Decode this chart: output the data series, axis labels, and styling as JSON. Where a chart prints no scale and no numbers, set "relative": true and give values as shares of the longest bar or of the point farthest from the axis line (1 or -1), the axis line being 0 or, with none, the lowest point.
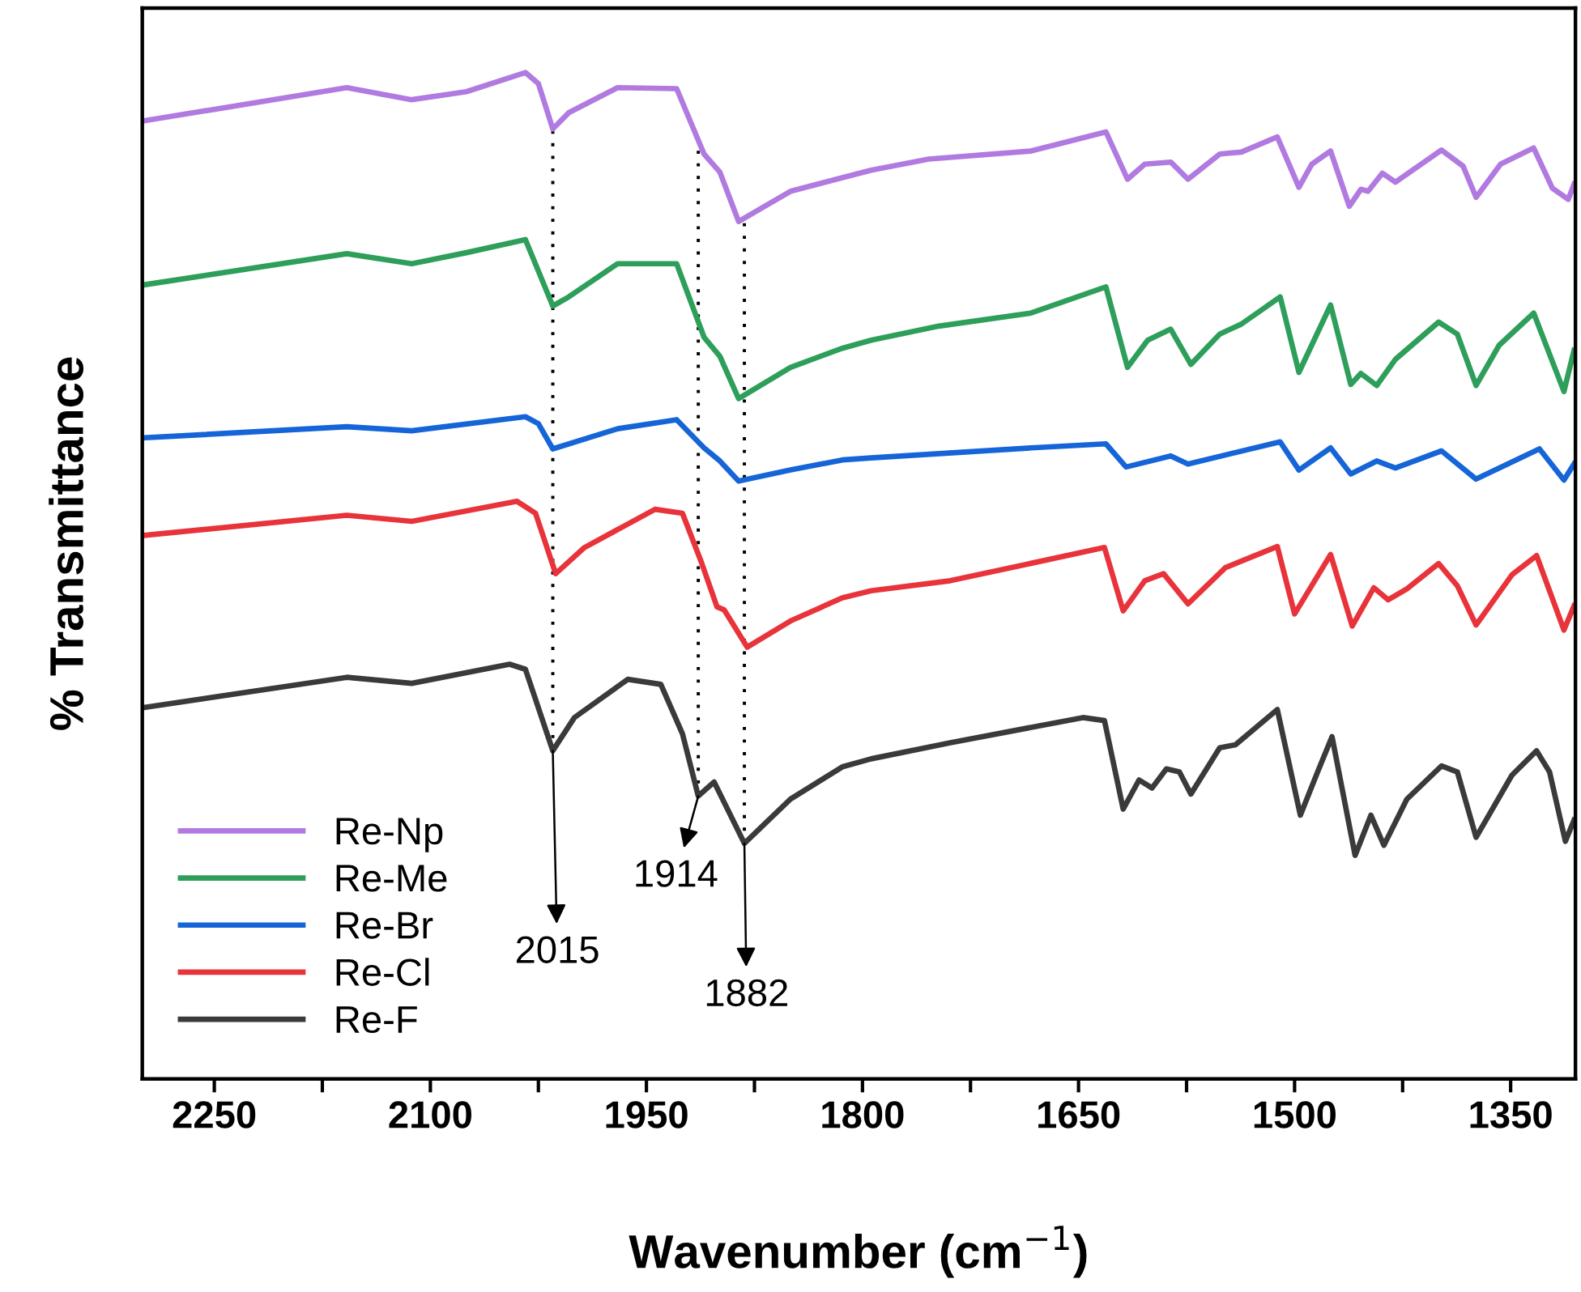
{
  "chart_data": {
    "type": "line",
    "relative": true,
    "xlabel": "Wavenumber (cm$^{−1}$)",
    "ylabel": "% Transmittance",
    "xlim": [
      2300,
      1305
    ],
    "xticks": [
      2250,
      {
        "value": 2175,
        "label": null
      },
      2100,
      {
        "value": 2025,
        "label": null
      },
      1950,
      {
        "value": 1875,
        "label": null
      },
      1800,
      {
        "value": 1725,
        "label": null
      },
      1650,
      {
        "value": 1575,
        "label": null
      },
      1500,
      {
        "value": 1425,
        "label": null
      },
      1350
    ],
    "tick_labels": "x",
    "grid": false,
    "legend": "bottom left",
    "marker": "none",
    "line_style": "solid",
    "series": [
      {
        "name": "Re-Np",
        "color": "#b07ae0",
        "x": [
          2299,
          2158,
          2113,
          2075,
          2034,
          2025,
          2015,
          2004,
          1970,
          1929,
          1910,
          1899,
          1886,
          1850,
          1794,
          1754,
          1683,
          1631,
          1616,
          1604,
          1586,
          1574,
          1552,
          1537,
          1512,
          1497,
          1488,
          1475,
          1462,
          1454,
          1449,
          1439,
          1430,
          1398,
          1383,
          1374,
          1357,
          1334,
          1321,
          1310,
          1306
        ],
        "values": [
          0.952,
          0.985,
          0.973,
          0.981,
          1.0,
          0.989,
          0.944,
          0.96,
          0.985,
          0.984,
          0.919,
          0.901,
          0.852,
          0.882,
          0.903,
          0.914,
          0.922,
          0.941,
          0.894,
          0.909,
          0.911,
          0.894,
          0.919,
          0.921,
          0.936,
          0.886,
          0.909,
          0.922,
          0.867,
          0.884,
          0.882,
          0.9,
          0.891,
          0.923,
          0.907,
          0.876,
          0.909,
          0.925,
          0.885,
          0.874,
          0.889
        ]
      },
      {
        "name": "Re-Me",
        "color": "#2e9e5b",
        "x": [
          2299,
          2158,
          2113,
          2075,
          2034,
          2015,
          2004,
          1970,
          1929,
          1910,
          1899,
          1886,
          1850,
          1814,
          1794,
          1747,
          1683,
          1631,
          1616,
          1602,
          1586,
          1572,
          1552,
          1537,
          1510,
          1497,
          1475,
          1461,
          1454,
          1443,
          1430,
          1400,
          1387,
          1374,
          1358,
          1334,
          1313,
          1306
        ],
        "values": [
          0.789,
          0.82,
          0.81,
          0.821,
          0.834,
          0.768,
          0.777,
          0.81,
          0.81,
          0.737,
          0.718,
          0.676,
          0.707,
          0.726,
          0.734,
          0.748,
          0.761,
          0.787,
          0.707,
          0.734,
          0.745,
          0.71,
          0.74,
          0.75,
          0.777,
          0.702,
          0.769,
          0.69,
          0.701,
          0.689,
          0.715,
          0.752,
          0.74,
          0.689,
          0.729,
          0.761,
          0.683,
          0.724
        ]
      },
      {
        "name": "Re-Br",
        "color": "#1565d8",
        "x": [
          2299,
          2158,
          2113,
          2034,
          2025,
          2015,
          1970,
          1929,
          1910,
          1899,
          1886,
          1850,
          1814,
          1794,
          1683,
          1631,
          1617,
          1586,
          1574,
          1510,
          1497,
          1475,
          1461,
          1443,
          1430,
          1398,
          1374,
          1330,
          1313,
          1306
        ],
        "values": [
          0.637,
          0.648,
          0.644,
          0.658,
          0.651,
          0.626,
          0.646,
          0.655,
          0.627,
          0.614,
          0.594,
          0.605,
          0.615,
          0.617,
          0.627,
          0.631,
          0.608,
          0.619,
          0.611,
          0.633,
          0.605,
          0.627,
          0.601,
          0.614,
          0.607,
          0.624,
          0.596,
          0.626,
          0.595,
          0.611
        ]
      },
      {
        "name": "Re-Cl",
        "color": "#e8333a",
        "x": [
          2299,
          2158,
          2113,
          2040,
          2027,
          2013,
          1993,
          1944,
          1925,
          1912,
          1901,
          1896,
          1880,
          1850,
          1814,
          1794,
          1739,
          1632,
          1619,
          1604,
          1591,
          1574,
          1548,
          1512,
          1500,
          1475,
          1460,
          1445,
          1435,
          1422,
          1400,
          1387,
          1374,
          1349,
          1332,
          1313,
          1306
        ],
        "values": [
          0.54,
          0.56,
          0.554,
          0.574,
          0.562,
          0.502,
          0.528,
          0.566,
          0.562,
          0.514,
          0.469,
          0.466,
          0.429,
          0.455,
          0.478,
          0.485,
          0.495,
          0.528,
          0.465,
          0.495,
          0.502,
          0.472,
          0.508,
          0.529,
          0.462,
          0.521,
          0.45,
          0.488,
          0.476,
          0.487,
          0.512,
          0.49,
          0.451,
          0.501,
          0.52,
          0.446,
          0.47
        ]
      },
      {
        "name": "Re-F",
        "color": "#3a3a3a",
        "x": [
          2299,
          2158,
          2113,
          2045,
          2034,
          2015,
          2000,
          1963,
          1940,
          1925,
          1914,
          1903,
          1882,
          1850,
          1814,
          1794,
          1739,
          1647,
          1632,
          1619,
          1608,
          1599,
          1589,
          1580,
          1572,
          1552,
          1541,
          1512,
          1496,
          1484,
          1474,
          1458,
          1447,
          1438,
          1422,
          1398,
          1387,
          1374,
          1349,
          1332,
          1323,
          1312,
          1306
        ],
        "values": [
          0.369,
          0.399,
          0.393,
          0.412,
          0.407,
          0.326,
          0.359,
          0.397,
          0.392,
          0.343,
          0.281,
          0.295,
          0.234,
          0.278,
          0.31,
          0.318,
          0.334,
          0.359,
          0.356,
          0.268,
          0.297,
          0.289,
          0.308,
          0.305,
          0.283,
          0.329,
          0.332,
          0.367,
          0.262,
          0.305,
          0.34,
          0.222,
          0.262,
          0.232,
          0.278,
          0.311,
          0.305,
          0.24,
          0.302,
          0.326,
          0.305,
          0.236,
          0.257
        ]
      }
    ],
    "ref_lines": [
      {
        "axis": "x",
        "value": 2015,
        "line_style": "dotted",
        "color": "#000000"
      },
      {
        "axis": "x",
        "value": 1914,
        "line_style": "dotted",
        "color": "#000000"
      },
      {
        "axis": "x",
        "value": 1882,
        "line_style": "dotted",
        "color": "#000000"
      }
    ],
    "annotations": [
      {
        "text": "2015",
        "x": 2015,
        "y": 0.326
      },
      {
        "text": "1914",
        "x": 1914,
        "y": 0.281
      },
      {
        "text": "1882",
        "x": 1882,
        "y": 0.234
      }
    ]
  }
}
